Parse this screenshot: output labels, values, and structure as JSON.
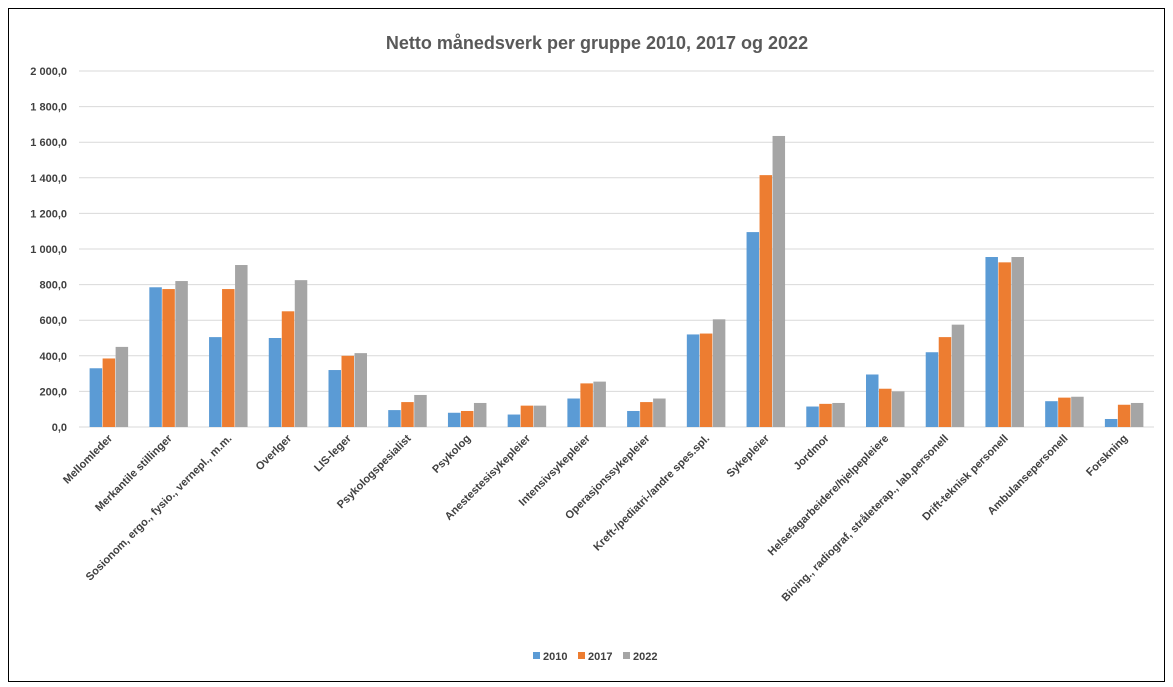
{
  "chart_data": {
    "type": "bar",
    "title": "Netto månedsverk per gruppe 2010, 2017 og 2022",
    "xlabel": "",
    "ylabel": "",
    "ylim": [
      0,
      2000
    ],
    "yticks": [
      "0,0",
      "200,0",
      "400,0",
      "600,0",
      "800,0",
      "1 000,0",
      "1 200,0",
      "1 400,0",
      "1 600,0",
      "1 800,0",
      "2 000,0"
    ],
    "grid": true,
    "legend_position": "bottom",
    "categories": [
      "Mellomleder",
      "Merkantile stillinger",
      "Sosionom, ergo., fysio., vernepl., m.m.",
      "Overlger",
      "LIS-leger",
      "Psykologspesialist",
      "Psykolog",
      "Anestestesisykepleier",
      "Intensivsykepleier",
      "Operasjonssykepleier",
      "Kreft-/pediatri-/andre spes.spl.",
      "Sykepleier",
      "Jordmor",
      "Helsefagarbeidere/hjelpepleiere",
      "Bioing., radiograf, stråleterap., lab.personell",
      "Drift-teknisk personell",
      "Ambulansepersonell",
      "Forskning"
    ],
    "series": [
      {
        "name": "2010",
        "color": "#5B9BD5",
        "values": [
          330,
          785,
          505,
          500,
          320,
          95,
          80,
          70,
          160,
          90,
          520,
          1095,
          115,
          295,
          420,
          955,
          145,
          45
        ]
      },
      {
        "name": "2017",
        "color": "#ED7D31",
        "values": [
          385,
          775,
          775,
          650,
          400,
          140,
          90,
          120,
          245,
          140,
          525,
          1415,
          130,
          215,
          505,
          925,
          165,
          125
        ]
      },
      {
        "name": "2022",
        "color": "#A5A5A5",
        "values": [
          450,
          820,
          910,
          825,
          415,
          180,
          135,
          120,
          255,
          160,
          605,
          1635,
          135,
          200,
          575,
          955,
          170,
          135
        ]
      }
    ]
  }
}
